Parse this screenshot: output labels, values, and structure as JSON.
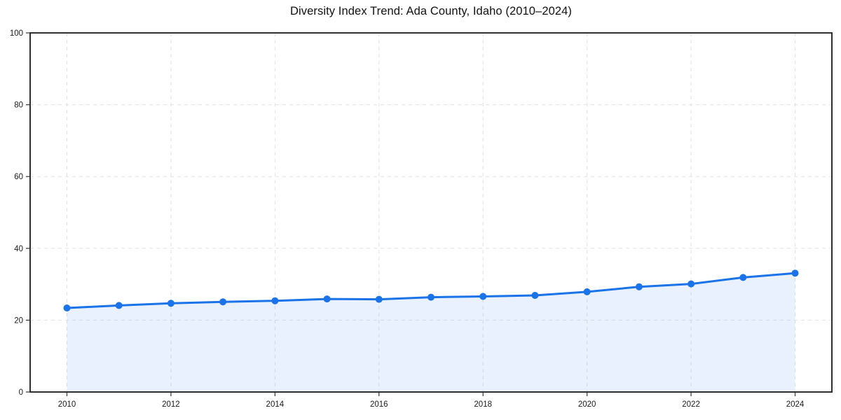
{
  "chart_data": {
    "type": "line",
    "title": "Diversity Index Trend: Ada County, Idaho (2010–2024)",
    "x": [
      2010,
      2011,
      2012,
      2013,
      2014,
      2015,
      2016,
      2017,
      2018,
      2019,
      2020,
      2021,
      2022,
      2023,
      2024
    ],
    "series": [
      {
        "name": "Diversity Index",
        "values": [
          23.4,
          24.1,
          24.7,
          25.1,
          25.4,
          25.9,
          25.8,
          26.4,
          26.6,
          26.9,
          27.9,
          29.3,
          30.1,
          31.9,
          33.1
        ]
      }
    ],
    "xlabel": "",
    "ylabel": "",
    "xlim": [
      2010,
      2024
    ],
    "ylim": [
      0,
      100
    ],
    "xticks": [
      2010,
      2012,
      2014,
      2016,
      2018,
      2020,
      2022,
      2024
    ],
    "yticks": [
      0,
      20,
      40,
      60,
      80,
      100
    ],
    "grid": "dashed",
    "legend_position": "none",
    "area_fill": true,
    "marker": "circle"
  },
  "colors": {
    "line": "#1a73e8",
    "marker": "#1a73e8",
    "area_fill": "rgba(26,115,232,0.10)",
    "grid": "#e2e2e2",
    "spine": "#1a1a1a",
    "tick": "#333333",
    "tick_label": "#1a1a1a",
    "title": "#111111",
    "background": "#ffffff"
  }
}
